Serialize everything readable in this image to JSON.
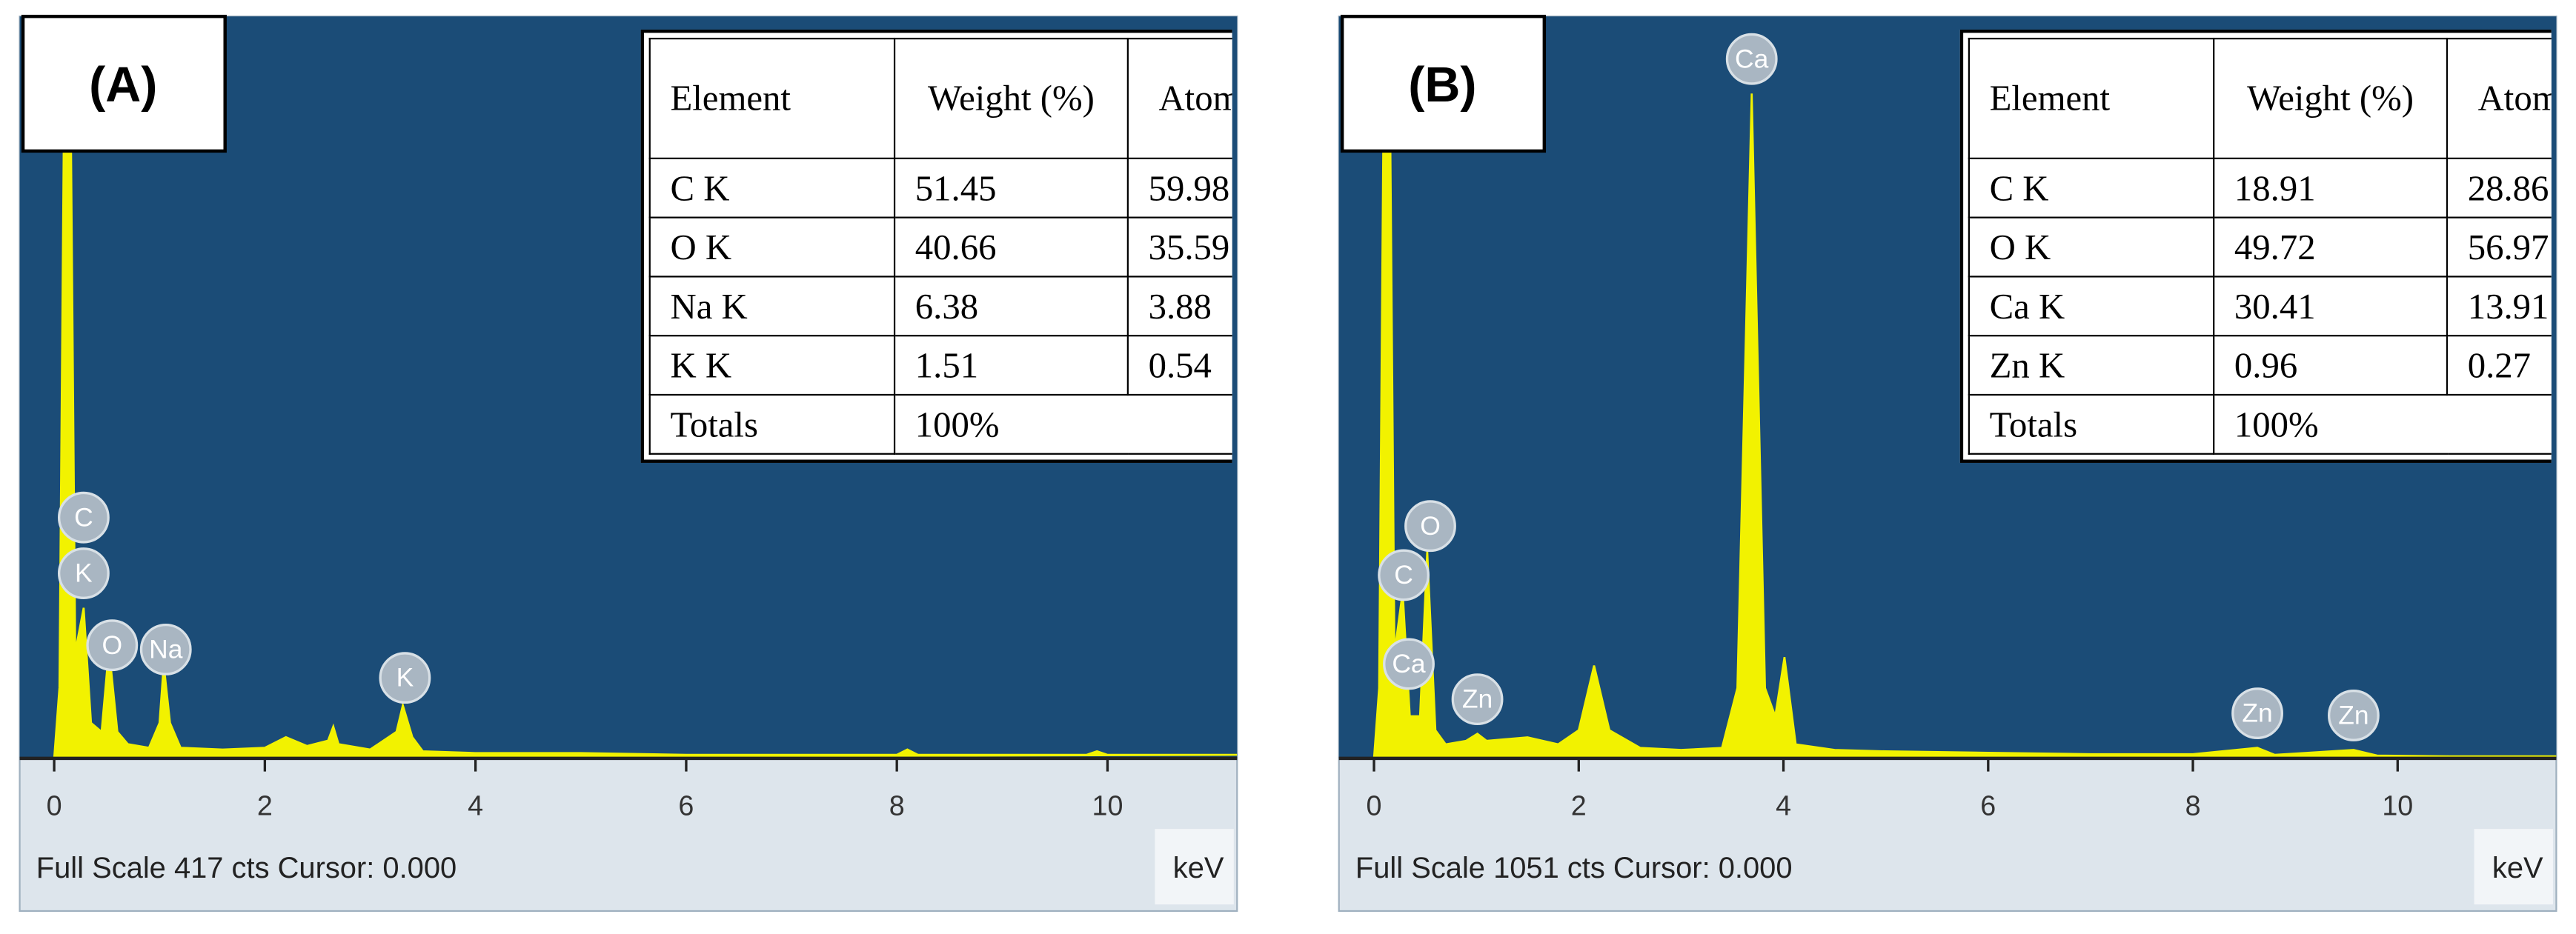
{
  "chart_data": [
    {
      "type": "area",
      "panel_label": "(A)",
      "footer": "Full Scale 417 cts Cursor: 0.000",
      "x_unit": "keV",
      "color": "#f2f200",
      "x": [
        0,
        0.05,
        0.1,
        0.15,
        0.2,
        0.28,
        0.35,
        0.45,
        0.52,
        0.6,
        0.7,
        0.9,
        1.0,
        1.04,
        1.1,
        1.2,
        1.6,
        2.0,
        2.2,
        2.4,
        2.6,
        2.65,
        2.7,
        3.0,
        3.25,
        3.31,
        3.4,
        3.5,
        4.0,
        5.0,
        6.0,
        7.0,
        8.0,
        8.1,
        8.2,
        9.0,
        9.8,
        9.9,
        10.0,
        11.23
      ],
      "values": [
        0,
        40,
        417,
        417,
        60,
        85,
        20,
        15,
        62,
        15,
        8,
        6,
        20,
        53,
        20,
        6,
        5,
        6,
        12,
        7,
        10,
        18,
        8,
        5,
        15,
        30,
        12,
        4,
        3,
        3,
        2,
        2,
        2,
        5,
        2,
        2,
        2,
        4,
        2,
        2
      ],
      "xlim": [
        -0.14,
        11.23
      ],
      "ylim": [
        0,
        417
      ],
      "xticks": [
        0,
        2,
        4,
        6,
        8,
        10
      ],
      "peak_labels": [
        {
          "label": "K",
          "x": 0.28
        },
        {
          "label": "C",
          "x": 0.28
        },
        {
          "label": "O",
          "x": 0.55
        },
        {
          "label": "Na",
          "x": 1.06
        },
        {
          "label": "K",
          "x": 3.33
        }
      ],
      "table": {
        "header": [
          "Element",
          "Weight (%)",
          "Atomic (%)"
        ],
        "rows": [
          [
            "C K",
            51.45,
            59.98
          ],
          [
            "O K",
            40.66,
            35.59
          ],
          [
            "Na K",
            6.38,
            3.88
          ],
          [
            "K K",
            1.51,
            0.54
          ],
          [
            "Totals",
            "100%"
          ]
        ]
      }
    },
    {
      "type": "area",
      "panel_label": "(B)",
      "footer": "Full Scale 1051 cts Cursor: 0.000",
      "x_unit": "keV",
      "color": "#f2f200",
      "x": [
        0,
        0.05,
        0.1,
        0.15,
        0.2,
        0.28,
        0.35,
        0.45,
        0.52,
        0.6,
        0.7,
        0.9,
        1.01,
        1.1,
        1.5,
        1.8,
        2.0,
        2.15,
        2.3,
        2.6,
        3.0,
        3.4,
        3.55,
        3.69,
        3.82,
        3.92,
        4.01,
        4.12,
        4.5,
        5.0,
        6.0,
        7.0,
        8.0,
        8.63,
        8.8,
        9.57,
        9.8,
        10.5,
        11.55
      ],
      "values": [
        0,
        100,
        1051,
        1051,
        150,
        237,
        60,
        60,
        295,
        40,
        20,
        25,
        35,
        25,
        30,
        20,
        40,
        132,
        40,
        15,
        12,
        15,
        100,
        946,
        100,
        60,
        144,
        20,
        12,
        10,
        8,
        6,
        6,
        15,
        5,
        12,
        4,
        3,
        3
      ],
      "xlim": [
        -0.15,
        11.55
      ],
      "ylim": [
        0,
        1051
      ],
      "xticks": [
        0,
        2,
        4,
        6,
        8,
        10
      ],
      "peak_labels": [
        {
          "label": "C",
          "x": 0.29
        },
        {
          "label": "O",
          "x": 0.55
        },
        {
          "label": "Ca",
          "x": 0.34
        },
        {
          "label": "Zn",
          "x": 1.01
        },
        {
          "label": "Ca",
          "x": 3.69
        },
        {
          "label": "Zn",
          "x": 8.63
        },
        {
          "label": "Zn",
          "x": 9.57
        }
      ],
      "table": {
        "header": [
          "Element",
          "Weight (%)",
          "Atomic (%)"
        ],
        "rows": [
          [
            "C K",
            18.91,
            28.86
          ],
          [
            "O K",
            49.72,
            56.97
          ],
          [
            "Ca K",
            30.41,
            13.91
          ],
          [
            "Zn K",
            0.96,
            0.27
          ],
          [
            "Totals",
            "100%"
          ]
        ]
      }
    }
  ]
}
